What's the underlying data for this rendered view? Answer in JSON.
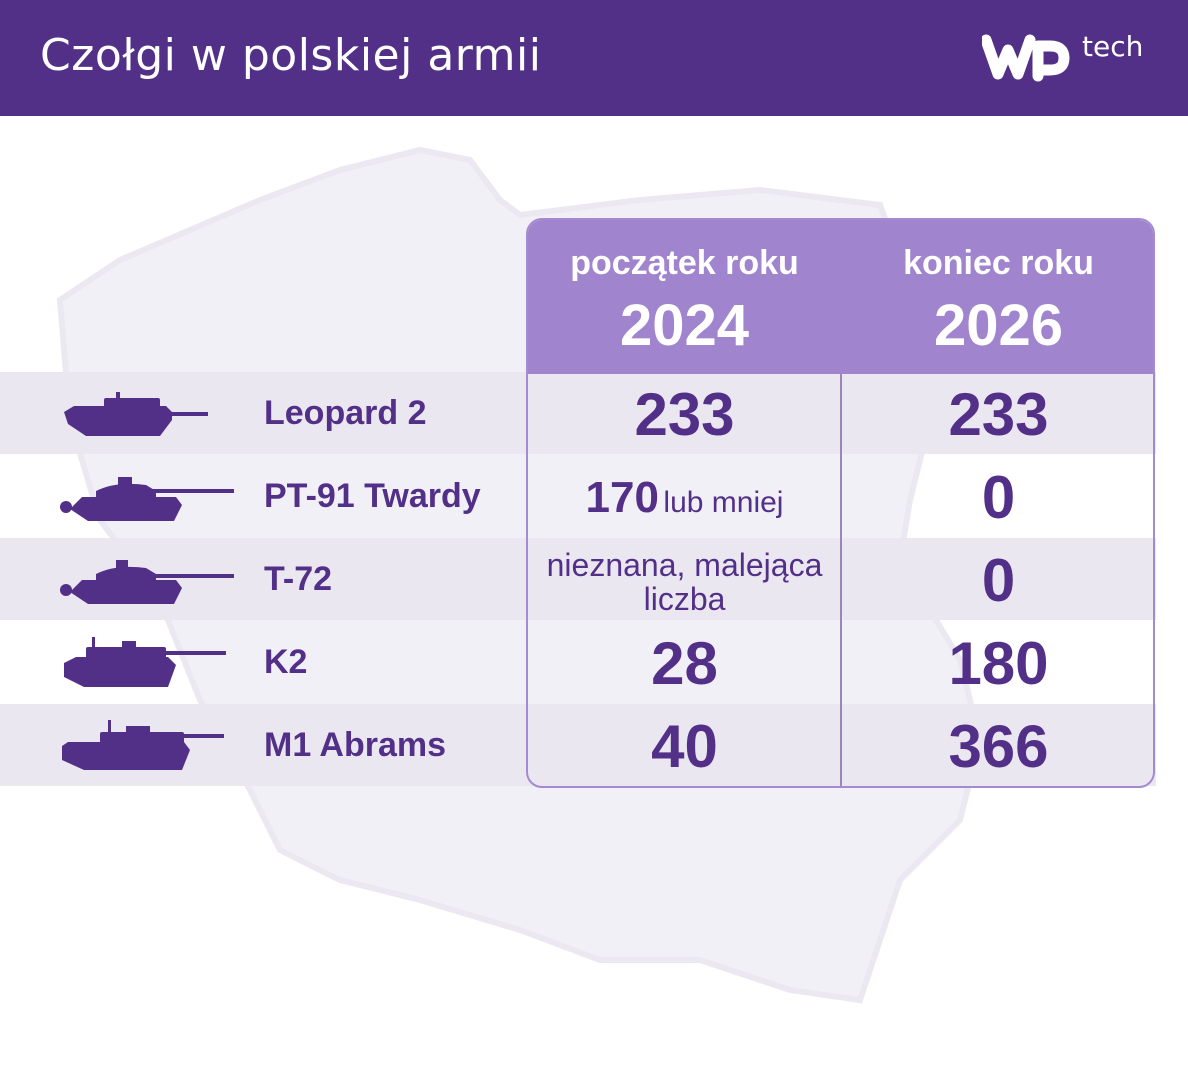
{
  "header": {
    "title": "Czołgi w polskiej armii",
    "logo_text": "tech",
    "logo_icon": "wp-logo-icon"
  },
  "colors": {
    "brand": "#533088",
    "header_bg": "#a084cd",
    "row_shade": "#ebe7f1",
    "border": "#a48ad0"
  },
  "table": {
    "columns": [
      {
        "label": "początek roku",
        "year": "2024"
      },
      {
        "label": "koniec roku",
        "year": "2026"
      }
    ],
    "rows": [
      {
        "name": "Leopard 2",
        "icon": "leopard-2-tank-icon",
        "start": "233",
        "end": "233"
      },
      {
        "name": "PT-91 Twardy",
        "icon": "pt-91-tank-icon",
        "start_value": "170",
        "start_suffix": "lub mniej",
        "end": "0"
      },
      {
        "name": "T-72",
        "icon": "t-72-tank-icon",
        "start_line1": "nieznana, malejąca",
        "start_line2": "liczba",
        "end": "0"
      },
      {
        "name": "K2",
        "icon": "k2-tank-icon",
        "start": "28",
        "end": "180"
      },
      {
        "name": "M1 Abrams",
        "icon": "m1-abrams-tank-icon",
        "start": "40",
        "end": "366"
      }
    ]
  }
}
